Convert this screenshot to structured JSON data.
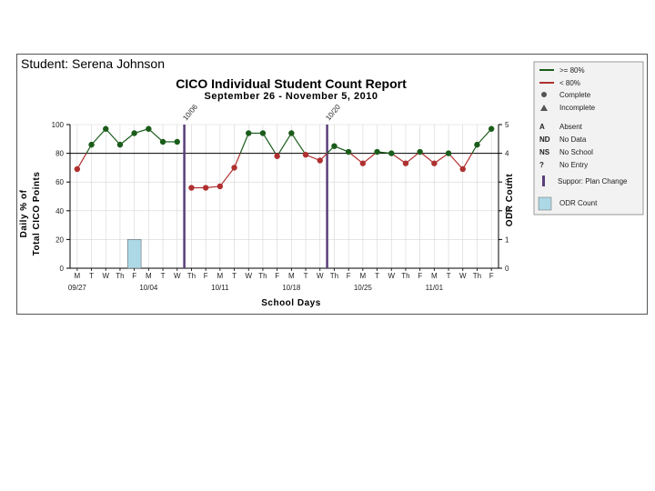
{
  "student_label": "Student: Serena Johnson",
  "chart_data": {
    "type": "line",
    "title": "CICO Individual Student Count Report",
    "subtitle": "September 26 - November 5, 2010",
    "ylabel_line1": "Daily % of",
    "ylabel_line2": "Total CICO Points",
    "y2label": "ODR Count",
    "xlabel": "School Days",
    "ylim": [
      0,
      100
    ],
    "y2lim": [
      0,
      5
    ],
    "yticks": [
      "0",
      "20",
      "40",
      "60",
      "80",
      "100"
    ],
    "y2ticks": [
      "0",
      "1",
      "2",
      "3",
      "4",
      "5"
    ],
    "threshold": 80,
    "grid": true,
    "day_labels": [
      "M",
      "T",
      "W",
      "Th",
      "F",
      "M",
      "T",
      "W",
      "Th",
      "F",
      "M",
      "T",
      "W",
      "Th",
      "F",
      "M",
      "T",
      "W",
      "Th",
      "F",
      "M",
      "T",
      "W",
      "Th",
      "F",
      "M",
      "T",
      "W",
      "Th",
      "F"
    ],
    "week_labels": [
      {
        "label": "09/27",
        "index": 0
      },
      {
        "label": "10/04",
        "index": 5
      },
      {
        "label": "10/11",
        "index": 10
      },
      {
        "label": "10/18",
        "index": 15
      },
      {
        "label": "10/25",
        "index": 20
      },
      {
        "label": "11/01",
        "index": 25
      }
    ],
    "segments": [
      {
        "x": [
          0,
          1,
          2,
          3,
          4,
          5,
          6,
          7
        ],
        "values": [
          69,
          86,
          97,
          86,
          94,
          97,
          88,
          88
        ]
      },
      {
        "x": [
          8,
          9,
          10,
          11,
          12,
          13,
          14,
          15,
          16,
          17,
          18,
          19,
          20,
          21,
          22,
          23,
          24,
          25,
          26,
          27,
          28,
          29
        ],
        "values": [
          56,
          56,
          57,
          70,
          94,
          94,
          78,
          94,
          79,
          75,
          85,
          81,
          73,
          81,
          80,
          73,
          81,
          73,
          80,
          69,
          86,
          97
        ]
      }
    ],
    "odr": [
      {
        "index": 4,
        "count": 1
      }
    ],
    "plan_changes": [
      {
        "index": 7.5,
        "label": "10/06"
      },
      {
        "index": 17.5,
        "label": "10/20"
      }
    ],
    "colors": {
      "above": "#1a5c1a",
      "below": "#b03030",
      "plan_change": "#5a3f7a",
      "odr": "#add8e6",
      "threshold": "#000000"
    }
  },
  "legend": {
    "above": ">= 80%",
    "below": "< 80%",
    "complete": "Complete",
    "incomplete": "Incomplete",
    "codes": [
      {
        "code": "A",
        "label": "Absent"
      },
      {
        "code": "ND",
        "label": "No Data"
      },
      {
        "code": "NS",
        "label": "No School"
      },
      {
        "code": "?",
        "label": "No Entry"
      }
    ],
    "plan_change": "Suppor: Plan Change",
    "odr": "ODR Count"
  }
}
